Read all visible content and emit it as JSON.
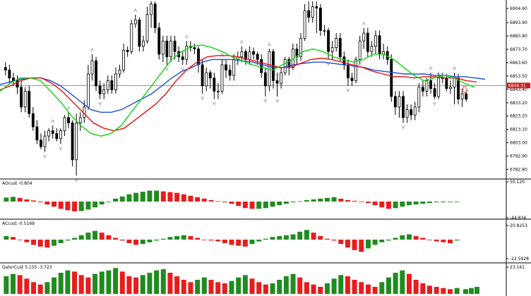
{
  "colors": {
    "background": "#ffffff",
    "candle": "#000000",
    "jaw": "#1e50dc",
    "teeth": "#e81010",
    "lips": "#12d612",
    "bid_line": "#e07070",
    "price_label_bg": "#c81e1e",
    "histogram_up": "#1e8c1e",
    "histogram_down": "#e81c1c",
    "fractal": "#a0a0a0",
    "arrow": "#e85a5a"
  },
  "chart_data": [
    {
      "type": "candlestick",
      "price_axis_ticks": [
        "6904.60",
        "6893.90",
        "6883.80",
        "6873.70",
        "6863.60",
        "6853.50",
        "6843.40",
        "6833.20",
        "6823.20",
        "6813.10",
        "6803.00",
        "6792.90",
        "6782.80"
      ],
      "ylim": [
        6776.0,
        6910.0
      ],
      "current_price_label": "6846.31",
      "current_price": 6846.3,
      "series": [
        {
          "name": "",
          "role": "candles",
          "open": [
            6860,
            6858,
            6852,
            6850,
            6845,
            6830,
            6842,
            6825,
            6815,
            6805,
            6800,
            6808,
            6812,
            6810,
            6806,
            6812,
            6822,
            6818,
            6790,
            6818,
            6822,
            6830,
            6855,
            6865,
            6846,
            6840,
            6843,
            6850,
            6843,
            6855,
            6858,
            6873,
            6872,
            6893,
            6896,
            6876,
            6880,
            6900,
            6908,
            6890,
            6870,
            6880,
            6868,
            6880,
            6872,
            6868,
            6866,
            6876,
            6875,
            6874,
            6862,
            6846,
            6856,
            6852,
            6842,
            6842,
            6862,
            6858,
            6854,
            6866,
            6868,
            6872,
            6866,
            6872,
            6870,
            6866,
            6856,
            6846,
            6872,
            6850,
            6848,
            6856,
            6866,
            6860,
            6874,
            6868,
            6882,
            6903,
            6898,
            6906,
            6905,
            6888,
            6888,
            6872,
            6875,
            6882,
            6868,
            6862,
            6852,
            6850,
            6866,
            6880,
            6886,
            6872,
            6876,
            6884,
            6870,
            6872,
            6866,
            6838,
            6830,
            6838,
            6822,
            6828,
            6824,
            6830,
            6845,
            6842,
            6850,
            6844,
            6838,
            6852,
            6852,
            6844,
            6845,
            6852,
            6836,
            6840
          ],
          "high": [
            6864,
            6862,
            6856,
            6854,
            6850,
            6845,
            6846,
            6830,
            6820,
            6810,
            6812,
            6814,
            6816,
            6814,
            6814,
            6824,
            6826,
            6820,
            6825,
            6826,
            6835,
            6862,
            6870,
            6868,
            6850,
            6848,
            6854,
            6854,
            6860,
            6862,
            6878,
            6876,
            6896,
            6900,
            6898,
            6884,
            6906,
            6910,
            6910,
            6894,
            6884,
            6884,
            6884,
            6884,
            6876,
            6872,
            6880,
            6880,
            6878,
            6876,
            6866,
            6860,
            6858,
            6856,
            6848,
            6866,
            6866,
            6862,
            6870,
            6872,
            6876,
            6874,
            6876,
            6875,
            6872,
            6870,
            6860,
            6874,
            6874,
            6856,
            6860,
            6868,
            6868,
            6878,
            6878,
            6886,
            6908,
            6910,
            6910,
            6910,
            6908,
            6892,
            6890,
            6880,
            6886,
            6886,
            6872,
            6866,
            6856,
            6868,
            6884,
            6890,
            6890,
            6880,
            6888,
            6888,
            6878,
            6876,
            6870,
            6842,
            6842,
            6842,
            6832,
            6832,
            6834,
            6848,
            6850,
            6852,
            6856,
            6848,
            6856,
            6856,
            6855,
            6850,
            6856,
            6855,
            6844,
            6842
          ],
          "low": [
            6854,
            6848,
            6846,
            6840,
            6826,
            6826,
            6822,
            6812,
            6802,
            6798,
            6796,
            6804,
            6806,
            6804,
            6802,
            6808,
            6814,
            6785,
            6778,
            6812,
            6818,
            6828,
            6850,
            6842,
            6836,
            6836,
            6840,
            6840,
            6840,
            6852,
            6856,
            6868,
            6870,
            6890,
            6872,
            6872,
            6878,
            6890,
            6886,
            6866,
            6864,
            6862,
            6864,
            6866,
            6864,
            6862,
            6862,
            6872,
            6870,
            6856,
            6840,
            6842,
            6844,
            6836,
            6836,
            6840,
            6852,
            6850,
            6850,
            6862,
            6864,
            6862,
            6862,
            6866,
            6862,
            6852,
            6838,
            6842,
            6844,
            6838,
            6844,
            6854,
            6854,
            6858,
            6862,
            6865,
            6880,
            6894,
            6894,
            6886,
            6884,
            6884,
            6866,
            6866,
            6872,
            6864,
            6858,
            6846,
            6846,
            6848,
            6862,
            6874,
            6868,
            6868,
            6870,
            6866,
            6866,
            6862,
            6834,
            6824,
            6822,
            6818,
            6818,
            6820,
            6820,
            6826,
            6838,
            6838,
            6840,
            6836,
            6836,
            6848,
            6842,
            6840,
            6832,
            6832,
            6830,
            6834
          ],
          "close": [
            6858,
            6852,
            6850,
            6845,
            6830,
            6842,
            6825,
            6815,
            6805,
            6800,
            6808,
            6812,
            6810,
            6806,
            6812,
            6822,
            6818,
            6790,
            6818,
            6822,
            6830,
            6855,
            6865,
            6846,
            6840,
            6843,
            6850,
            6843,
            6855,
            6858,
            6873,
            6872,
            6893,
            6896,
            6876,
            6880,
            6900,
            6908,
            6890,
            6870,
            6880,
            6868,
            6880,
            6872,
            6868,
            6866,
            6876,
            6875,
            6874,
            6862,
            6846,
            6856,
            6852,
            6842,
            6842,
            6862,
            6858,
            6854,
            6866,
            6868,
            6872,
            6866,
            6872,
            6870,
            6866,
            6856,
            6846,
            6872,
            6850,
            6848,
            6856,
            6866,
            6860,
            6874,
            6868,
            6882,
            6903,
            6898,
            6906,
            6905,
            6888,
            6888,
            6872,
            6875,
            6882,
            6868,
            6862,
            6852,
            6850,
            6866,
            6880,
            6886,
            6872,
            6876,
            6884,
            6870,
            6872,
            6866,
            6838,
            6830,
            6838,
            6822,
            6828,
            6824,
            6830,
            6845,
            6842,
            6850,
            6844,
            6838,
            6852,
            6852,
            6844,
            6845,
            6852,
            6836,
            6840,
            6836
          ]
        },
        {
          "name": "",
          "role": "jaw",
          "x_start": 0,
          "values": [
            6847,
            6849,
            6851,
            6852,
            6852,
            6850,
            6846,
            6840,
            6834,
            6828,
            6826,
            6826,
            6828,
            6832,
            6836,
            6840,
            6846,
            6852,
            6857,
            6860,
            6864,
            6866,
            6866,
            6866,
            6865,
            6864,
            6862,
            6860,
            6860,
            6862,
            6863,
            6864,
            6864,
            6863,
            6862,
            6861,
            6860,
            6858,
            6857,
            6856,
            6855,
            6855,
            6855,
            6854,
            6854,
            6853,
            6853,
            6852,
            6851
          ]
        },
        {
          "name": "",
          "role": "teeth",
          "x_start": 0,
          "values": [
            6843,
            6846,
            6850,
            6852,
            6852,
            6848,
            6842,
            6834,
            6826,
            6818,
            6814,
            6812,
            6814,
            6820,
            6826,
            6832,
            6840,
            6850,
            6858,
            6864,
            6868,
            6869,
            6869,
            6868,
            6866,
            6864,
            6862,
            6860,
            6860,
            6863,
            6866,
            6867,
            6866,
            6864,
            6862,
            6860,
            6857,
            6855,
            6853,
            6853,
            6852,
            6853,
            6853,
            6852,
            6852,
            6850,
            6849
          ]
        },
        {
          "name": "",
          "role": "lips",
          "x_start": 0,
          "values": [
            6842,
            6848,
            6852,
            6852,
            6850,
            6842,
            6834,
            6824,
            6816,
            6810,
            6808,
            6810,
            6816,
            6826,
            6836,
            6846,
            6856,
            6866,
            6872,
            6876,
            6877,
            6875,
            6872,
            6868,
            6865,
            6862,
            6860,
            6858,
            6862,
            6866,
            6872,
            6874,
            6872,
            6868,
            6866,
            6864,
            6866,
            6870,
            6870,
            6866,
            6860,
            6854,
            6850,
            6852,
            6854,
            6852,
            6848,
            6845
          ]
        }
      ]
    },
    {
      "type": "bar",
      "label": "AOcust -0.804",
      "axis_ticks": [
        "50.120",
        "-44.834"
      ],
      "ylim": [
        -44.834,
        50.12
      ],
      "series": [
        {
          "name": "",
          "values": [
            11,
            13,
            10,
            6,
            3,
            -2,
            -8,
            -14,
            -20,
            -24,
            -27,
            -26,
            -22,
            -16,
            -8,
            0,
            8,
            14,
            20,
            24,
            27,
            30,
            30,
            28,
            26,
            24,
            20,
            16,
            12,
            8,
            4,
            1,
            -2,
            -6,
            -12,
            -18,
            -20,
            -20,
            -18,
            -14,
            -10,
            -6,
            -2,
            1,
            4,
            6,
            8,
            10,
            12,
            8,
            4,
            2,
            0,
            -4,
            -10,
            -16,
            -20,
            -18,
            -14,
            -10,
            -8,
            -6,
            -4,
            -2,
            -2,
            -1,
            -1
          ]
        }
      ]
    },
    {
      "type": "bar",
      "label": "ACcust -0.5169",
      "axis_ticks": [
        "20.8253",
        "-22.5928"
      ],
      "ylim": [
        -22.5928,
        20.8253
      ],
      "series": [
        {
          "name": "",
          "values": [
            4,
            3,
            0,
            -3,
            -6,
            -8,
            -9,
            -7,
            -4,
            -1,
            2,
            5,
            8,
            10,
            8,
            5,
            2,
            -1,
            -4,
            -6,
            -5,
            -3,
            -1,
            1,
            3,
            4,
            5,
            4,
            2,
            0,
            -1,
            -2,
            -4,
            -6,
            -7,
            -8,
            -5,
            -2,
            1,
            3,
            4,
            5,
            6,
            9,
            11,
            8,
            4,
            1,
            -1,
            -5,
            -9,
            -12,
            -14,
            -10,
            -6,
            -3,
            -1,
            2,
            5,
            6,
            4,
            2,
            0,
            -2,
            -3,
            -4,
            -1
          ]
        }
      ]
    },
    {
      "type": "bar",
      "label": "GatorCust 5.155 -3.723",
      "axis_ticks": [
        "23.161"
      ],
      "ylim": [
        -2,
        24
      ],
      "series": [
        {
          "name": "",
          "values": [
            15,
            17,
            16,
            13,
            10,
            8,
            10,
            14,
            18,
            20,
            19,
            16,
            14,
            17,
            19,
            20,
            22,
            19,
            15,
            14,
            16,
            18,
            20,
            21,
            18,
            15,
            12,
            10,
            12,
            14,
            12,
            10,
            9,
            11,
            14,
            16,
            13,
            10,
            8,
            9,
            12,
            15,
            17,
            14,
            10,
            8,
            6,
            9,
            13,
            16,
            15,
            12,
            10,
            8,
            6,
            10,
            14,
            18,
            20,
            17,
            12,
            9,
            7,
            6,
            5,
            4,
            5
          ]
        }
      ]
    }
  ]
}
